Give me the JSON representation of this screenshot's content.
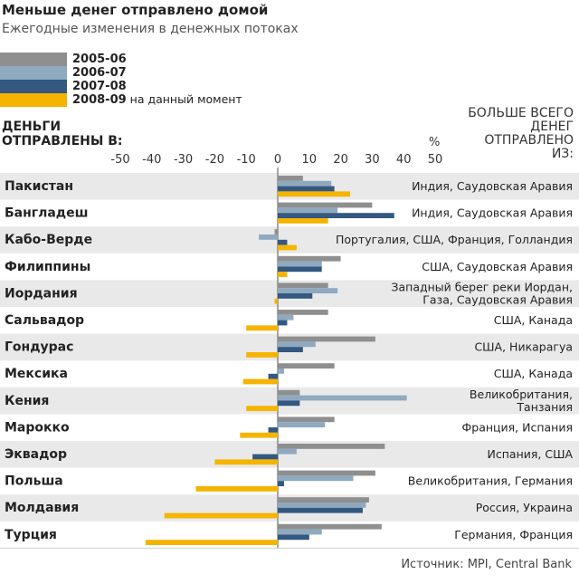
{
  "header": {
    "title": "Меньше денег отправлено домой",
    "subtitle": "Ежегодные изменения в денежных потоках",
    "left_title_line1": "ДЕНЬГИ",
    "left_title_line2": "ОТПРАВЛЕНЫ В:",
    "right_title_line1": "БОЛЬШЕ ВСЕГО",
    "right_title_line2": "ДЕНЕГ",
    "right_title_line3": "ОТПРАВЛЕНО",
    "right_title_line4": "ИЗ:",
    "percent_label": "%"
  },
  "legend": [
    {
      "label": "2005-06",
      "note": "",
      "color": "#8f8f8f"
    },
    {
      "label": "2006-07",
      "note": "",
      "color": "#8fa9bf"
    },
    {
      "label": "2007-08",
      "note": "",
      "color": "#34587f"
    },
    {
      "label": "2008-09",
      "note": " на данный момент",
      "color": "#f5b400"
    }
  ],
  "source": "Источник: MPI, Central Bank",
  "chart_data": {
    "type": "bar",
    "orientation": "horizontal",
    "xlim": [
      -50,
      50
    ],
    "xticks": [
      -50,
      -40,
      -30,
      -20,
      -10,
      0,
      10,
      20,
      30,
      40,
      50
    ],
    "grid": false,
    "categories": [
      "Пакистан",
      "Бангладеш",
      "Кабо-Верде",
      "Филиппины",
      "Иордания",
      "Сальвадор",
      "Гондурас",
      "Мексика",
      "Кения",
      "Марокко",
      "Эквадор",
      "Польша",
      "Молдавия",
      "Турция"
    ],
    "sources": [
      "Индия, Саудовская Аравия",
      "Индия, Саудовская Аравия",
      "Португалия, США, Франция, Голландия",
      "США, Саудовская Аравия",
      "Западный берег реки Иордан,\nГаза, Саудовская Аравия",
      "США, Канада",
      "США, Никарагуа",
      "США, Канада",
      "Великобритания,\nТанзания",
      "Франция, Испания",
      "Испания, США",
      "Великобритания, Германия",
      "Россия, Украина",
      "Германия, Франция"
    ],
    "series": [
      {
        "name": "2005-06",
        "values": [
          8,
          30,
          -1,
          20,
          16,
          16,
          31,
          18,
          7,
          18,
          34,
          31,
          29,
          33
        ]
      },
      {
        "name": "2006-07",
        "values": [
          17,
          19,
          -6,
          14,
          19,
          5,
          12,
          2,
          41,
          15,
          6,
          24,
          28,
          14
        ]
      },
      {
        "name": "2007-08",
        "values": [
          18,
          37,
          3,
          14,
          11,
          3,
          8,
          -3,
          7,
          -3,
          -8,
          2,
          27,
          10
        ]
      },
      {
        "name": "2008-09",
        "values": [
          23,
          16,
          6,
          3,
          -1,
          -10,
          -10,
          -11,
          -10,
          -12,
          -20,
          -26,
          -36,
          -42
        ]
      }
    ]
  }
}
